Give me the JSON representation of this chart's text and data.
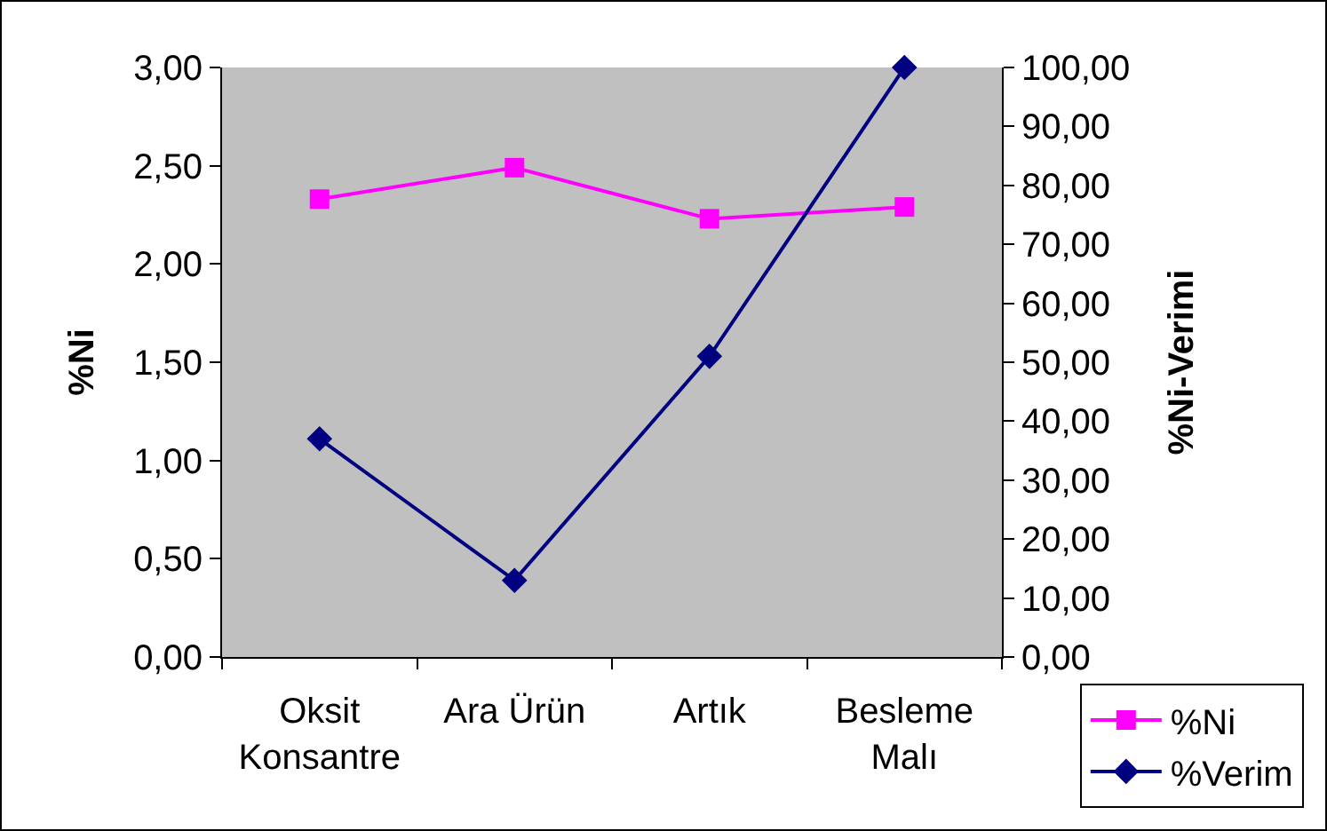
{
  "chart_data": {
    "type": "line",
    "categories": [
      "Oksit Konsantre",
      "Ara Ürün",
      "Artık",
      "Besleme Malı"
    ],
    "ylabel": "%Ni",
    "y2label": "%Ni-Verimi",
    "series": [
      {
        "name": "%Ni",
        "color": "#ff00ff",
        "marker": "square",
        "values": [
          2.33,
          2.49,
          2.23,
          2.29
        ]
      },
      {
        "name": "%Verim",
        "color": "#000080",
        "marker": "diamond",
        "axis": "y2",
        "values": [
          37,
          13,
          51,
          100
        ]
      }
    ],
    "ylim": [
      0,
      3
    ],
    "yticks": [
      {
        "value": 0,
        "label": "0,00"
      },
      {
        "value": 0.5,
        "label": "0,50"
      },
      {
        "value": 1,
        "label": "1,00"
      },
      {
        "value": 1.5,
        "label": "1,50"
      },
      {
        "value": 2,
        "label": "2,00"
      },
      {
        "value": 2.5,
        "label": "2,50"
      },
      {
        "value": 3,
        "label": "3,00"
      }
    ],
    "y2lim": [
      0,
      100
    ],
    "y2ticks": [
      {
        "value": 0,
        "label": "0,00"
      },
      {
        "value": 10,
        "label": "10,00"
      },
      {
        "value": 20,
        "label": "20,00"
      },
      {
        "value": 30,
        "label": "30,00"
      },
      {
        "value": 40,
        "label": "40,00"
      },
      {
        "value": 50,
        "label": "50,00"
      },
      {
        "value": 60,
        "label": "60,00"
      },
      {
        "value": 70,
        "label": "70,00"
      },
      {
        "value": 80,
        "label": "80,00"
      },
      {
        "value": 90,
        "label": "90,00"
      },
      {
        "value": 100,
        "label": "100,00"
      }
    ],
    "legend": "bottom right"
  }
}
